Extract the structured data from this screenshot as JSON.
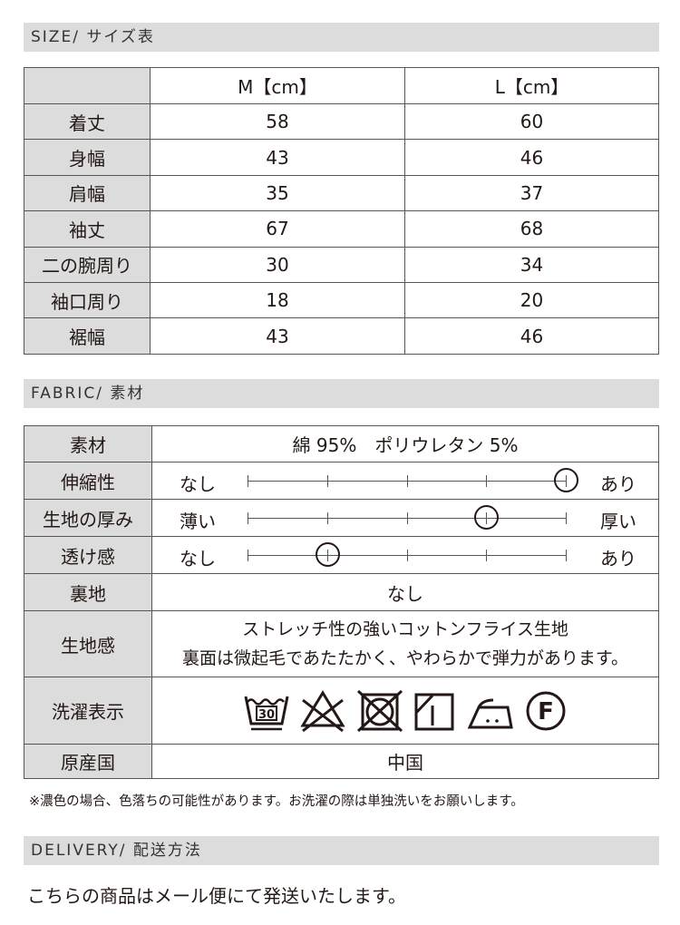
{
  "size": {
    "header": "SIZE/ サイズ表",
    "columns": [
      "",
      "M【cm】",
      "L【cm】"
    ],
    "rows": [
      [
        "着丈",
        "58",
        "60"
      ],
      [
        "身幅",
        "43",
        "46"
      ],
      [
        "肩幅",
        "35",
        "37"
      ],
      [
        "袖丈",
        "67",
        "68"
      ],
      [
        "二の腕周り",
        "30",
        "34"
      ],
      [
        "袖口周り",
        "18",
        "20"
      ],
      [
        "裾幅",
        "43",
        "46"
      ]
    ]
  },
  "fabric": {
    "header": "FABRIC/ 素材",
    "material_label": "素材",
    "material": "綿 95%　ポリウレタン 5%",
    "scales": [
      {
        "label": "伸縮性",
        "left": "なし",
        "right": "あり",
        "level": 5,
        "max": 5
      },
      {
        "label": "生地の厚み",
        "left": "薄い",
        "right": "厚い",
        "level": 4,
        "max": 5
      },
      {
        "label": "透け感",
        "left": "なし",
        "right": "あり",
        "level": 2,
        "max": 5
      }
    ],
    "lining_label": "裏地",
    "lining": "なし",
    "feel_label": "生地感",
    "feel_1": "ストレッチ性の強いコットンフライス生地",
    "feel_2": "裏面は微起毛であたたかく、やわらかで弾力があります。",
    "care_label": "洗濯表示",
    "care_icons": [
      "wash-30-icon",
      "no-bleach-icon",
      "no-tumble-dry-icon",
      "line-dry-shade-icon",
      "iron-medium-icon",
      "dry-clean-f-icon"
    ],
    "wash_temp": "30",
    "dry_clean_letter": "F",
    "origin_label": "原産国",
    "origin": "中国"
  },
  "note": "※濃色の場合、色落ちの可能性があります。お洗濯の際は単独洗いをお願いします。",
  "delivery": {
    "header": "DELIVERY/ 配送方法",
    "text": "こちらの商品はメール便にて発送いたします。"
  }
}
